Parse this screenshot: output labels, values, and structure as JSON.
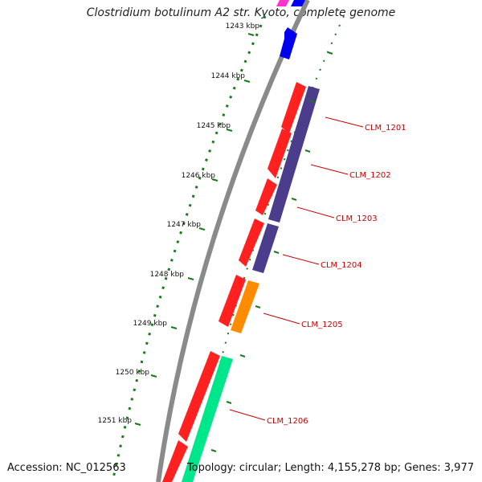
{
  "title": "Clostridium botulinum A2 str. Kyoto, complete genome",
  "footer": {
    "accession": "Accession: NC_012563",
    "summary": "Topology: circular; Length: 4,155,278 bp; Genes: 3,977"
  },
  "ticks": [
    "1243 kbp",
    "1244 kbp",
    "1245 kbp",
    "1246 kbp",
    "1247 kbp",
    "1248 kbp",
    "1249 kbp",
    "1250 kbp",
    "1251 kbp"
  ],
  "genes": [
    "CLM_1201",
    "CLM_1202",
    "CLM_1203",
    "CLM_1204",
    "CLM_1205",
    "CLM_1206"
  ],
  "colors": {
    "backbone": "#8a8a8a",
    "cds_red": "#ff0000",
    "cds_purple": "#4b3c8c",
    "cds_orange": "#ff8c00",
    "cds_green": "#00e68a",
    "cds_blue": "#0000ee",
    "cds_pink": "#ff33cc",
    "tick_green": "#1a7a1a",
    "label_red": "#cc0000"
  }
}
